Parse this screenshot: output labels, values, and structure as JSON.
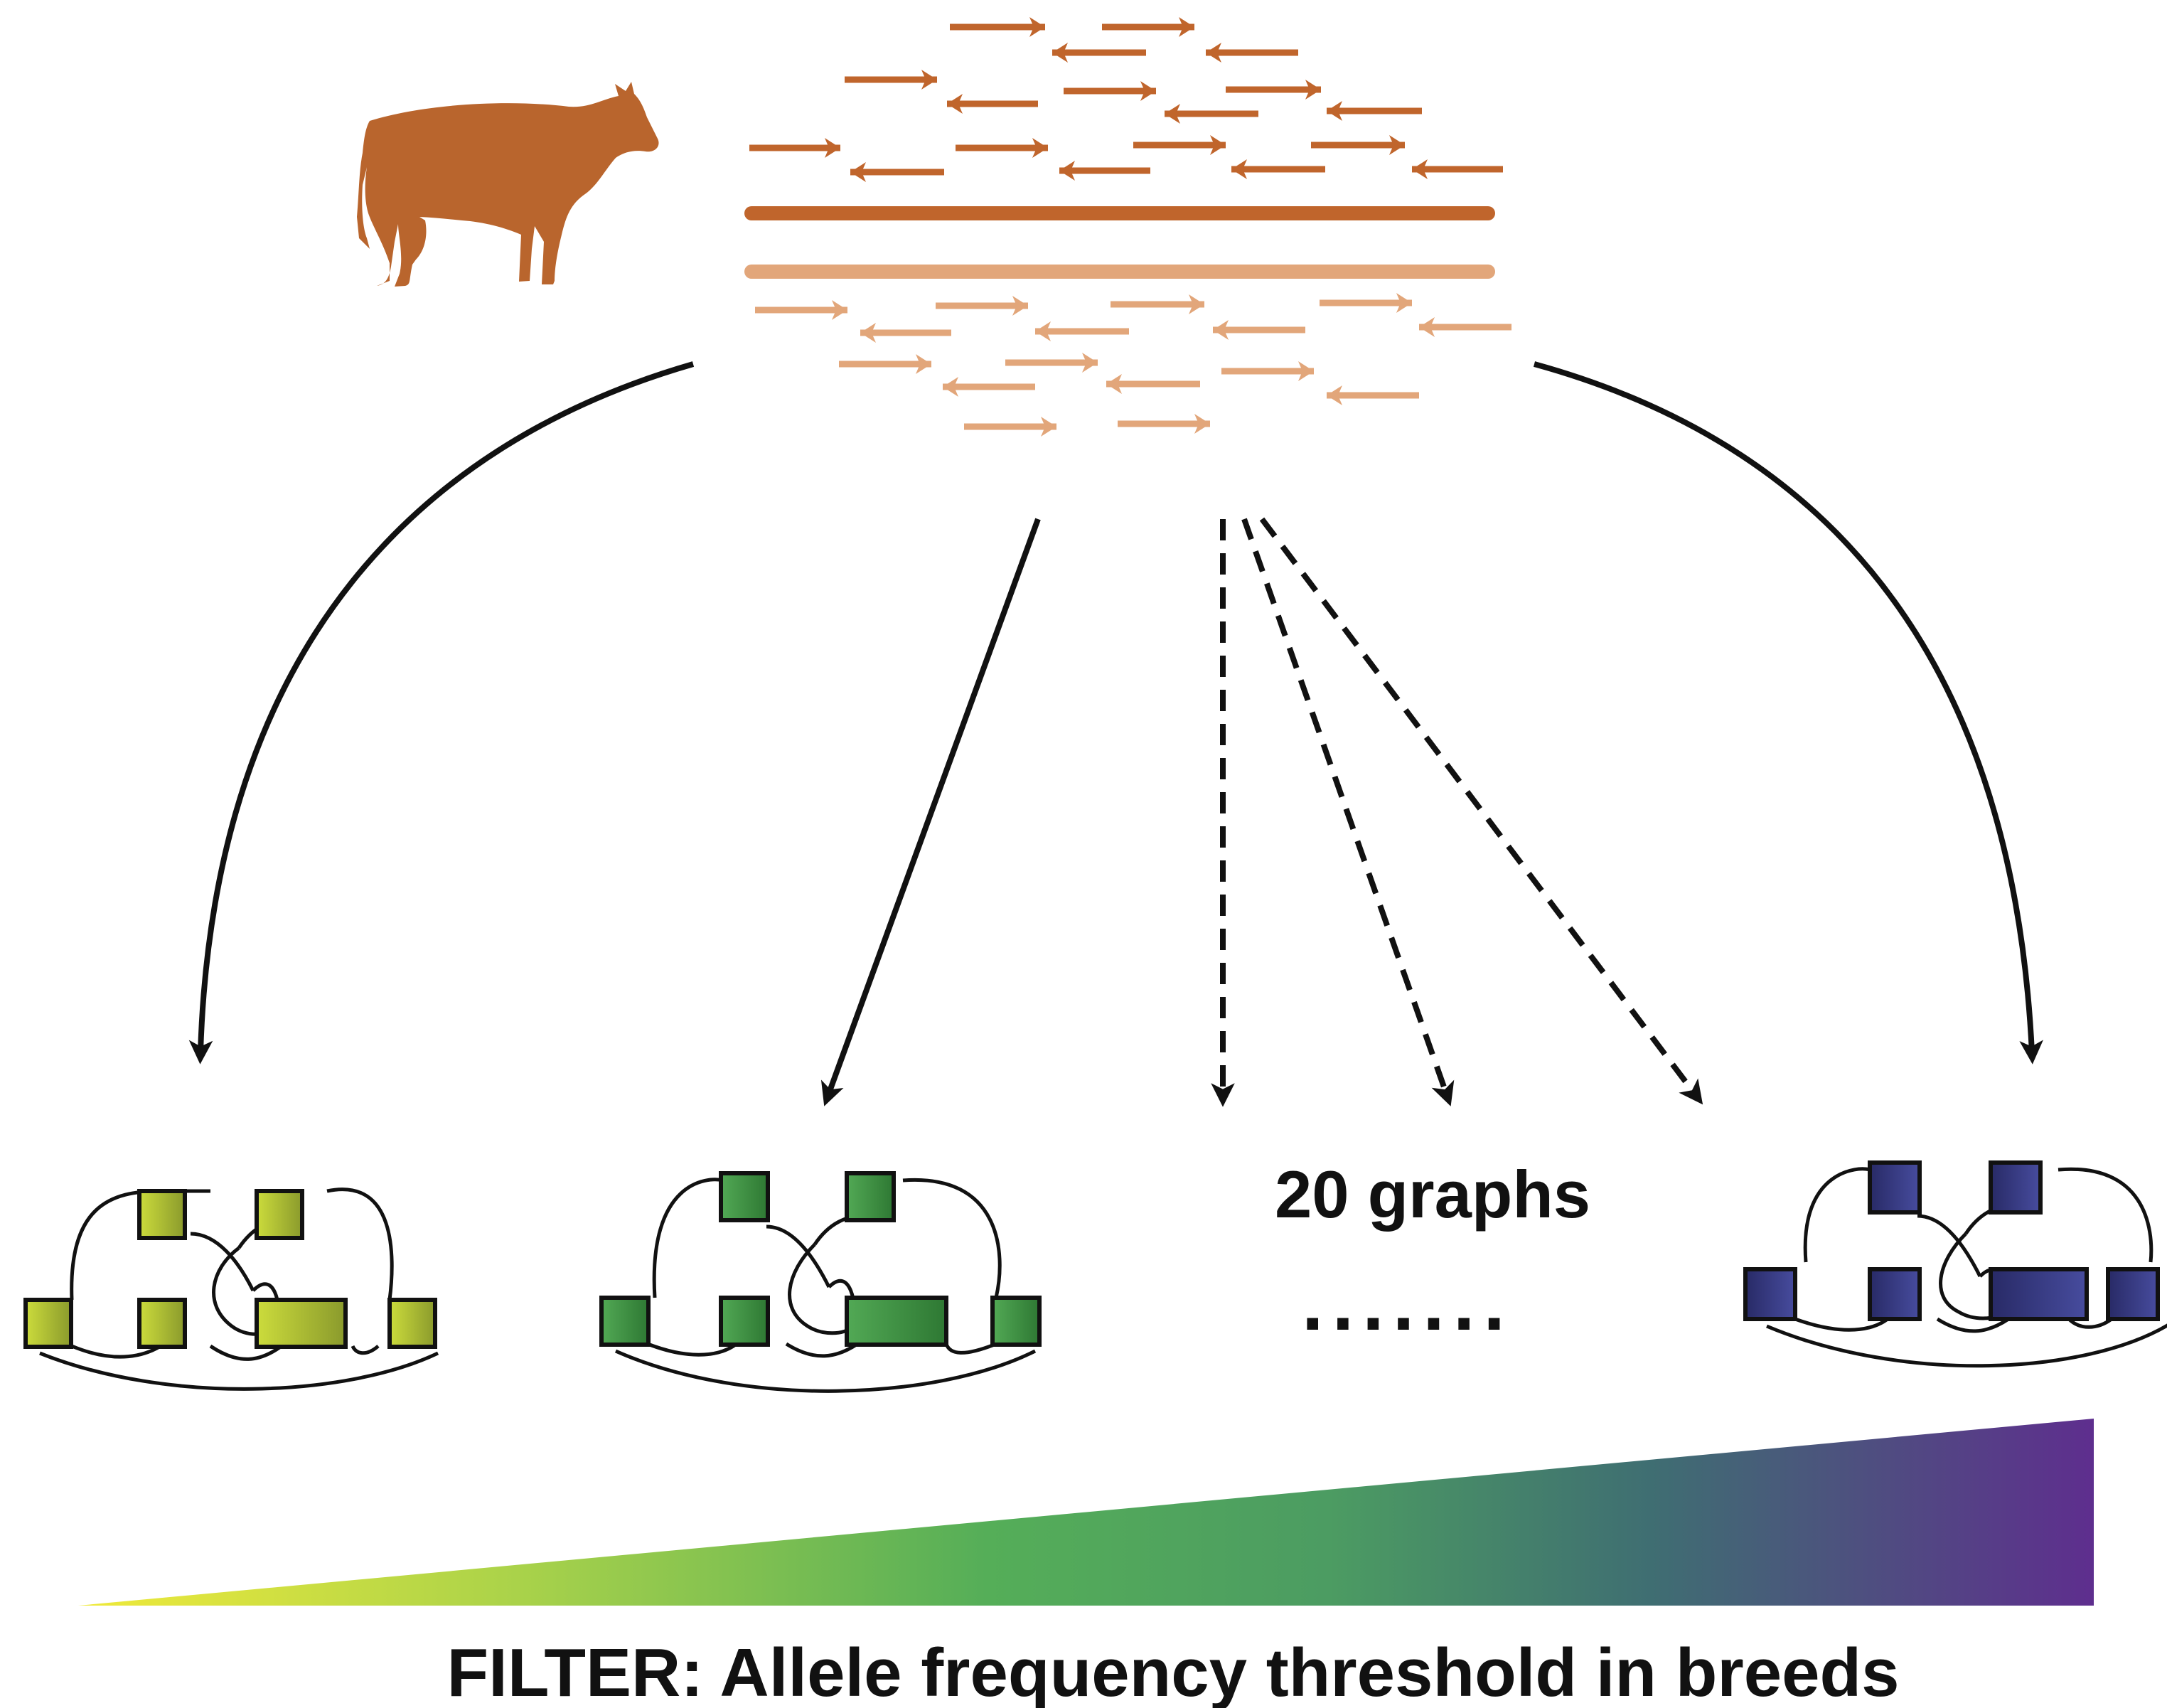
{
  "graphs_label": "20 graphs",
  "ellipsis": ".......",
  "filter_label": "FILTER: Allele frequency threshold in breeds",
  "colors": {
    "cow": "#B9652D",
    "reads_dark": "#C0652C",
    "reads_light": "#E2A67A",
    "graph_1_start": "#C8D83A",
    "graph_1_end": "#8C9A2A",
    "graph_2_start": "#4FA552",
    "graph_2_end": "#2F7A35",
    "graph_3_start": "#2B2D6E",
    "graph_3_end": "#43479A",
    "gradient_stops": [
      "#F0EA3A",
      "#A9D24A",
      "#50AD5A",
      "#3E7F6E",
      "#45507A",
      "#5E2E8E"
    ]
  }
}
